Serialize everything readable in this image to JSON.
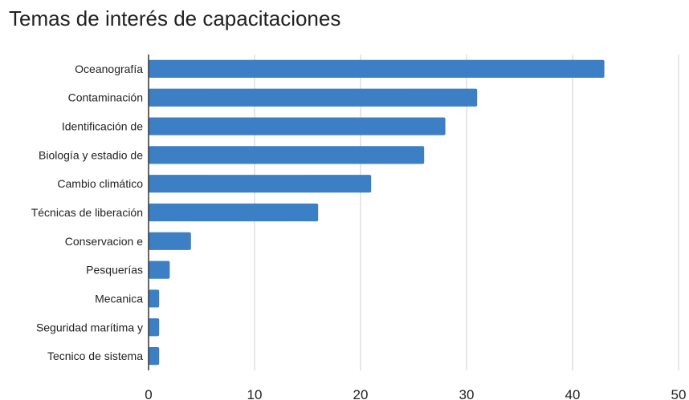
{
  "chart_data": {
    "type": "bar",
    "orientation": "horizontal",
    "title": "Temas de interés de capacitaciones",
    "xlabel": "",
    "ylabel": "",
    "categories": [
      "Oceanografía",
      "Contaminación",
      "Identificación de",
      "Biología y estadio de",
      "Cambio climático",
      "Técnicas de liberación",
      "Conservacion e",
      "Pesquerías",
      "Mecanica",
      "Seguridad marítima y",
      "Tecnico de sistema"
    ],
    "values": [
      43,
      31,
      28,
      26,
      21,
      16,
      4,
      2,
      1,
      1,
      1
    ],
    "xlim": [
      0,
      50
    ],
    "xticks": [
      "0",
      "10",
      "20",
      "30",
      "40",
      "50"
    ],
    "grid": true,
    "legend": "none",
    "bar_color": "#3d7fc4",
    "grid_color": "#cccccc",
    "axis_color": "#333333"
  }
}
